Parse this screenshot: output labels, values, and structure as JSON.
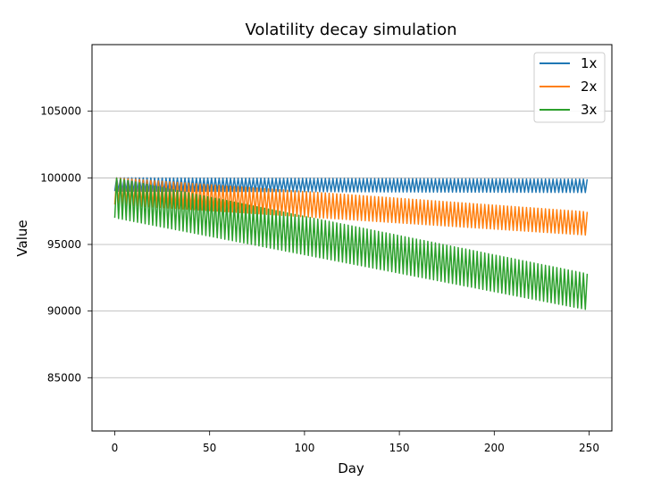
{
  "chart_data": {
    "type": "line",
    "title": "Volatility decay simulation",
    "xlabel": "Day",
    "ylabel": "Value",
    "xlim": [
      -12,
      262
    ],
    "ylim": [
      81000,
      110000
    ],
    "xticks": [
      0,
      50,
      100,
      150,
      200,
      250
    ],
    "yticks": [
      85000,
      90000,
      95000,
      100000,
      105000
    ],
    "grid": "y",
    "legend_position": "top-right",
    "days": 250,
    "series": [
      {
        "name": "1x",
        "color": "#1f77b4",
        "start_high": 100000,
        "start_low": 99000,
        "end_high": 99900,
        "end_low": 98900
      },
      {
        "name": "2x",
        "color": "#ff7f0e",
        "start_high": 100000,
        "start_low": 98000,
        "end_high": 97450,
        "end_low": 95700
      },
      {
        "name": "3x",
        "color": "#2ca02c",
        "start_high": 100000,
        "start_low": 97000,
        "end_high": 92800,
        "end_low": 90100
      }
    ]
  }
}
